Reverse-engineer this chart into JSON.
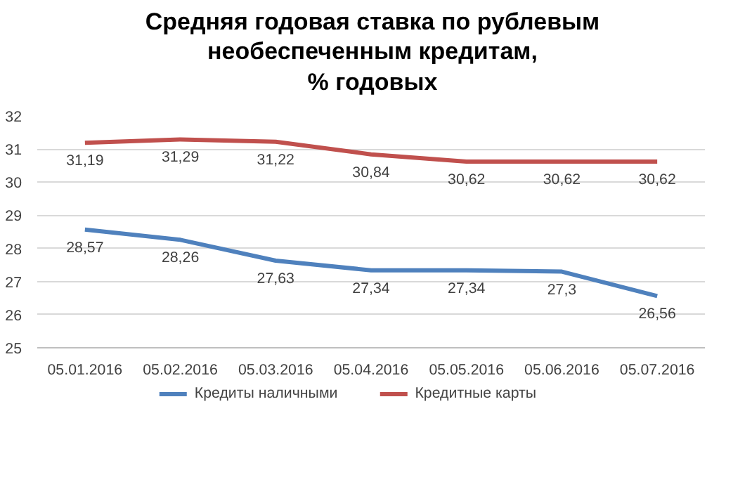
{
  "chart_data": {
    "type": "line",
    "title": "Средняя годовая ставка по рублевым\nнеобеспеченным кредитам,\n% годовых",
    "categories": [
      "05.01.2016",
      "05.02.2016",
      "05.03.2016",
      "05.04.2016",
      "05.05.2016",
      "05.06.2016",
      "05.07.2016"
    ],
    "series": [
      {
        "name": "Кредиты наличными",
        "color": "#4f81bd",
        "values": [
          28.57,
          28.26,
          27.63,
          27.34,
          27.34,
          27.3,
          26.56
        ],
        "value_labels": [
          "28,57",
          "28,26",
          "27,63",
          "27,34",
          "27,34",
          "27,3",
          "26,56"
        ]
      },
      {
        "name": "Кредитные карты",
        "color": "#c0504d",
        "values": [
          31.19,
          31.29,
          31.22,
          30.84,
          30.62,
          30.62,
          30.62
        ],
        "value_labels": [
          "31,19",
          "31,29",
          "31,22",
          "30,84",
          "30,62",
          "30,62",
          "30,62"
        ]
      }
    ],
    "ylim": [
      25,
      32
    ],
    "yticks": [
      25,
      26,
      27,
      28,
      29,
      30,
      31,
      32
    ],
    "grid": "y",
    "legend": "bottom",
    "marker": "none",
    "line_style": "solid"
  }
}
